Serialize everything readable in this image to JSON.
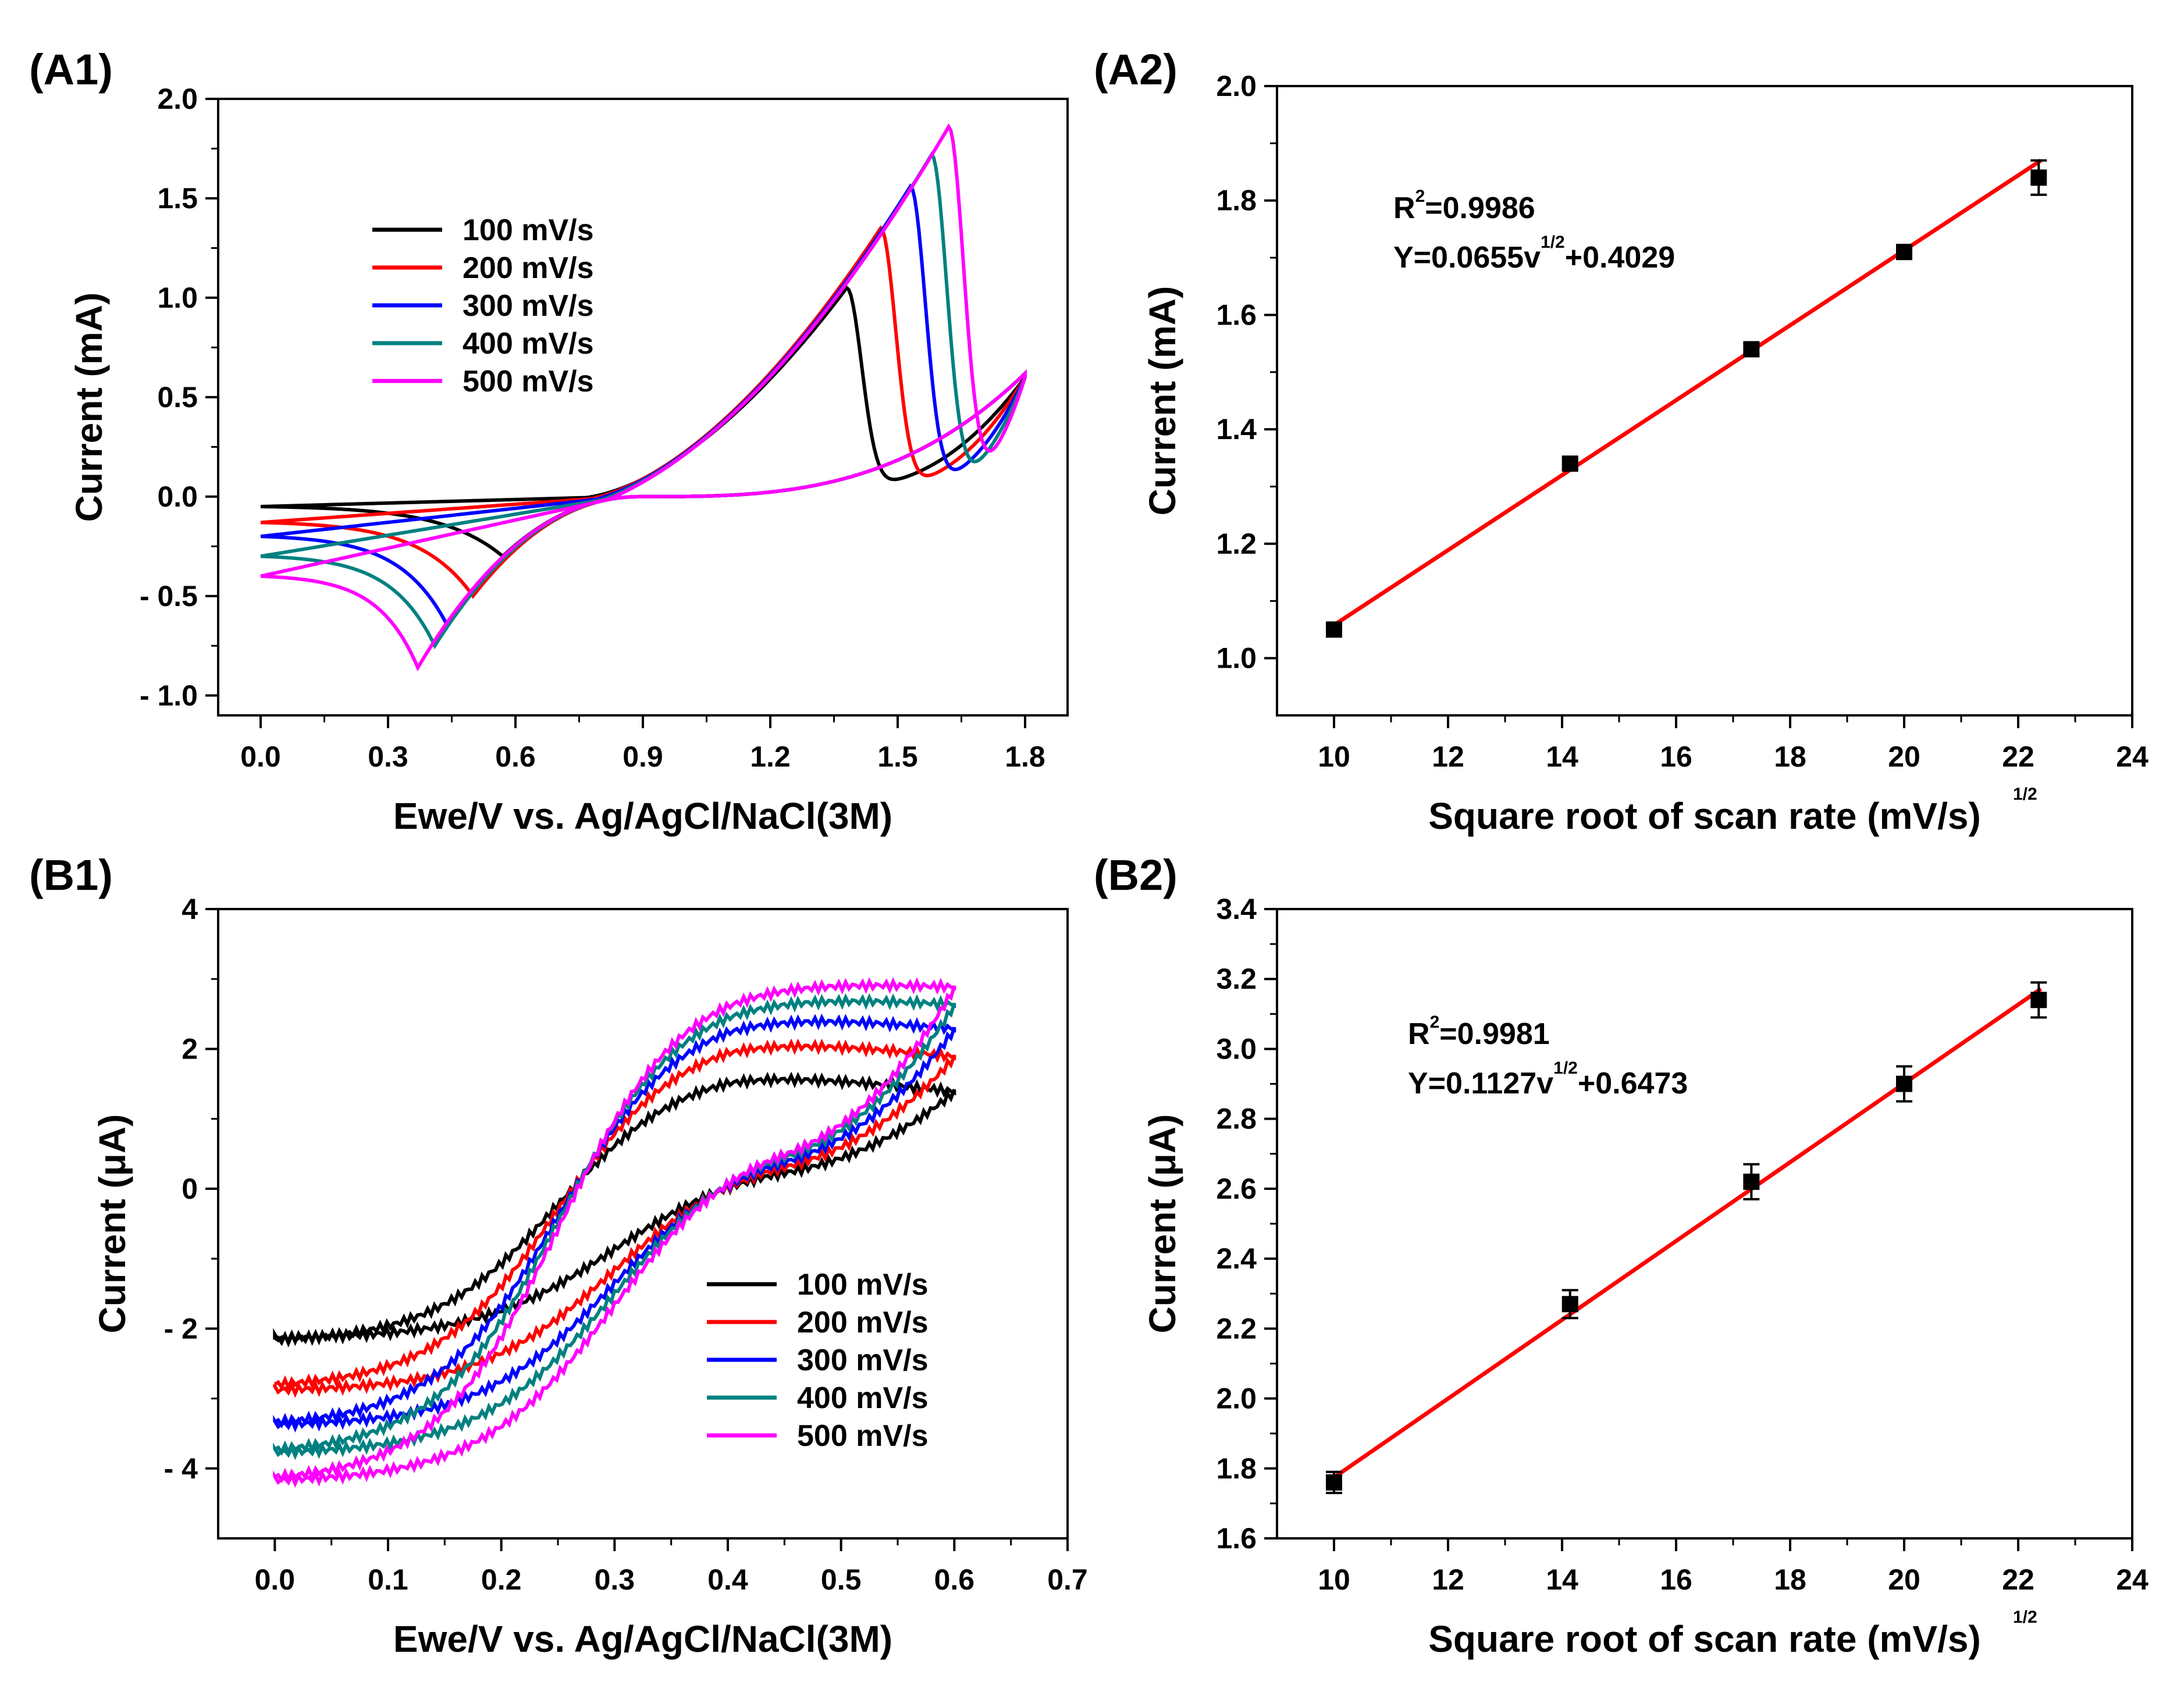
{
  "figure": {
    "chart_data": [
      {
        "id": "A1",
        "type": "line",
        "panel_label": "(A1)",
        "xlabel": "Ewe/V vs. Ag/AgCl/NaCl(3M)",
        "ylabel": "Current (mA)",
        "xlim": [
          -0.1,
          1.9
        ],
        "ylim": [
          -1.1,
          2.0
        ],
        "xticks": [
          0.0,
          0.3,
          0.6,
          0.9,
          1.2,
          1.5,
          1.8
        ],
        "xtick_labels": [
          "0.0",
          "0.3",
          "0.6",
          "0.9",
          "1.2",
          "1.5",
          "1.8"
        ],
        "yticks": [
          -1.0,
          -0.5,
          0.0,
          0.5,
          1.0,
          1.5,
          2.0
        ],
        "ytick_labels": [
          "- 1.0",
          "- 0.5",
          "0.0",
          "0.5",
          "1.0",
          "1.5",
          "2.0"
        ],
        "legend_position": "upper-left",
        "series": [
          {
            "name": "100 mV/s",
            "color": "#000000",
            "anodic_peak_potential": 1.38,
            "anodic_peak_current": 1.05,
            "cathodic_peak_potential": 0.57,
            "cathodic_peak_current": -0.3,
            "start_current": -0.05
          },
          {
            "name": "200 mV/s",
            "color": "#ff0000",
            "anodic_peak_potential": 1.46,
            "anodic_peak_current": 1.35,
            "cathodic_peak_potential": 0.5,
            "cathodic_peak_current": -0.5,
            "start_current": -0.13
          },
          {
            "name": "300 mV/s",
            "color": "#0000ff",
            "anodic_peak_potential": 1.53,
            "anodic_peak_current": 1.56,
            "cathodic_peak_potential": 0.44,
            "cathodic_peak_current": -0.65,
            "start_current": -0.2
          },
          {
            "name": "400 mV/s",
            "color": "#008080",
            "anodic_peak_potential": 1.58,
            "anodic_peak_current": 1.72,
            "cathodic_peak_potential": 0.41,
            "cathodic_peak_current": -0.75,
            "start_current": -0.3
          },
          {
            "name": "500 mV/s",
            "color": "#ff00ff",
            "anodic_peak_potential": 1.62,
            "anodic_peak_current": 1.86,
            "cathodic_peak_potential": 0.37,
            "cathodic_peak_current": -0.86,
            "start_current": -0.4
          }
        ]
      },
      {
        "id": "A2",
        "type": "scatter",
        "panel_label": "(A2)",
        "xlabel": "Square root of scan rate (mV/s)",
        "xlabel_superscript": "1/2",
        "ylabel": "Current (mA)",
        "xlim": [
          9,
          24
        ],
        "ylim": [
          0.9,
          2.0
        ],
        "xticks": [
          10,
          12,
          14,
          16,
          18,
          20,
          22,
          24
        ],
        "xtick_labels": [
          "10",
          "12",
          "14",
          "16",
          "18",
          "20",
          "22",
          "24"
        ],
        "yticks": [
          1.0,
          1.2,
          1.4,
          1.6,
          1.8,
          2.0
        ],
        "ytick_labels": [
          "1.0",
          "1.2",
          "1.4",
          "1.6",
          "1.8",
          "2.0"
        ],
        "x": [
          10,
          14.14,
          17.32,
          20,
          22.36
        ],
        "y": [
          1.05,
          1.34,
          1.54,
          1.71,
          1.84
        ],
        "error": [
          0.01,
          0.01,
          0.01,
          0.01,
          0.03
        ],
        "fit": {
          "slope": 0.0655,
          "intercept": 0.4029,
          "color": "#ff0000"
        },
        "annotation": {
          "r2_prefix": "R",
          "r2_sup": "2",
          "r2_value": "=0.9986",
          "eq_prefix": "Y=0.0655v",
          "eq_sup": "1/2",
          "eq_suffix": "+0.4029"
        }
      },
      {
        "id": "B1",
        "type": "line",
        "panel_label": "(B1)",
        "xlabel": "Ewe/V vs. Ag/AgCl/NaCl(3M)",
        "ylabel": "Current (μA)",
        "xlim": [
          -0.05,
          0.7
        ],
        "ylim": [
          -5,
          4
        ],
        "xticks": [
          0.0,
          0.1,
          0.2,
          0.3,
          0.4,
          0.5,
          0.6,
          0.7
        ],
        "xtick_labels": [
          "0.0",
          "0.1",
          "0.2",
          "0.3",
          "0.4",
          "0.5",
          "0.6",
          "0.7"
        ],
        "yticks": [
          -4,
          -2,
          0,
          2,
          4
        ],
        "ytick_labels": [
          "- 4",
          "- 2",
          "0",
          "2",
          "4"
        ],
        "legend_position": "lower-right",
        "series": [
          {
            "name": "100 mV/s",
            "color": "#000000",
            "upper_max": 1.75,
            "end_upper": 1.4,
            "end_lower": 1.4,
            "start": -2.2,
            "lower_min": -2.15
          },
          {
            "name": "200 mV/s",
            "color": "#ff0000",
            "upper_max": 2.25,
            "end_upper": 1.9,
            "end_lower": 1.9,
            "start": -2.85,
            "lower_min": -2.9
          },
          {
            "name": "300 mV/s",
            "color": "#0000ff",
            "upper_max": 2.6,
            "end_upper": 2.3,
            "end_lower": 2.3,
            "start": -3.4,
            "lower_min": -3.4
          },
          {
            "name": "400 mV/s",
            "color": "#008080",
            "upper_max": 2.85,
            "end_upper": 2.65,
            "end_lower": 2.65,
            "start": -3.8,
            "lower_min": -3.8
          },
          {
            "name": "500 mV/s",
            "color": "#ff00ff",
            "upper_max": 3.05,
            "end_upper": 2.9,
            "end_lower": 2.9,
            "start": -4.2,
            "lower_min": -4.2
          }
        ]
      },
      {
        "id": "B2",
        "type": "scatter",
        "panel_label": "(B2)",
        "xlabel": "Square root of scan rate (mV/s)",
        "xlabel_superscript": "1/2",
        "ylabel": "Current (μA)",
        "xlim": [
          9,
          24
        ],
        "ylim": [
          1.6,
          3.4
        ],
        "xticks": [
          10,
          12,
          14,
          16,
          18,
          20,
          22,
          24
        ],
        "xtick_labels": [
          "10",
          "12",
          "14",
          "16",
          "18",
          "20",
          "22",
          "24"
        ],
        "yticks": [
          1.6,
          1.8,
          2.0,
          2.2,
          2.4,
          2.6,
          2.8,
          3.0,
          3.2,
          3.4
        ],
        "ytick_labels": [
          "1.6",
          "1.8",
          "2.0",
          "2.2",
          "2.4",
          "2.6",
          "2.8",
          "3.0",
          "3.2",
          "3.4"
        ],
        "x": [
          10,
          14.14,
          17.32,
          20,
          22.36
        ],
        "y": [
          1.76,
          2.27,
          2.62,
          2.9,
          3.14
        ],
        "error": [
          0.03,
          0.04,
          0.05,
          0.05,
          0.05
        ],
        "fit": {
          "slope": 0.1127,
          "intercept": 0.6473,
          "color": "#ff0000"
        },
        "annotation": {
          "r2_prefix": "R",
          "r2_sup": "2",
          "r2_value": "=0.9981",
          "eq_prefix": "Y=0.1127v",
          "eq_sup": "1/2",
          "eq_suffix": "+0.6473"
        }
      }
    ]
  }
}
